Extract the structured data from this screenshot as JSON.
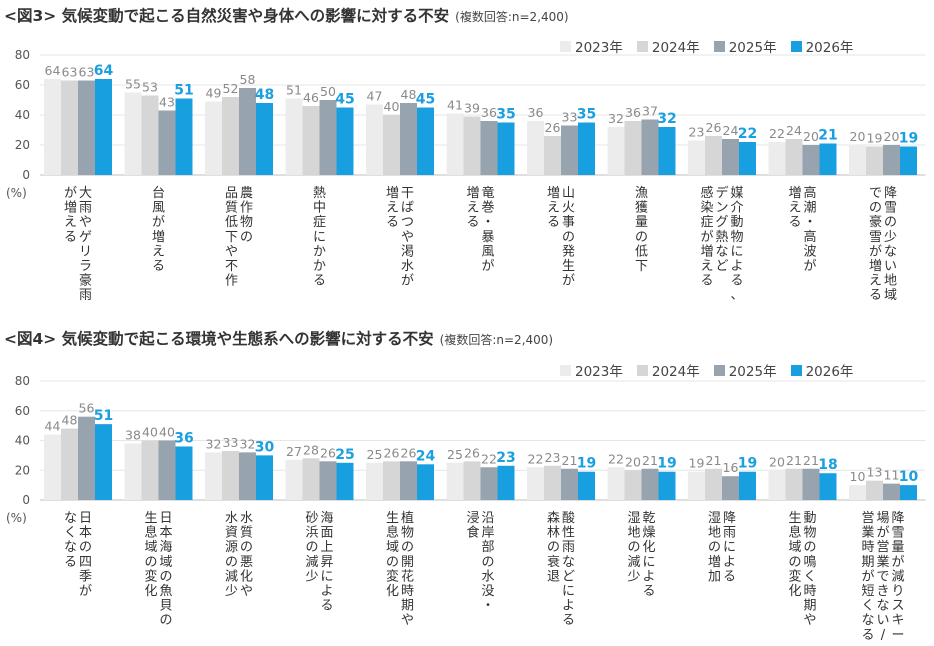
{
  "palette": {
    "2023": "#ececec",
    "2024": "#d6d6d6",
    "2025": "#97a3ae",
    "2026": "#189fe0"
  },
  "chart_data": [
    {
      "type": "bar",
      "title": "<図3> 気候変動で起こる自然災害や身体への影響に対する不安",
      "note": "(複数回答:n=2,400)",
      "ylabel": "(%)",
      "ylim": [
        0,
        80
      ],
      "yticks": [
        0,
        20,
        40,
        60,
        80
      ],
      "legend": [
        "2023年",
        "2024年",
        "2025年",
        "2026年"
      ],
      "categories": [
        [
          "大雨やゲリラ豪雨",
          "が増える"
        ],
        [
          "台風が増える"
        ],
        [
          "農作物の",
          "品質低下や不作"
        ],
        [
          "熱中症にかかる"
        ],
        [
          "干ばつや渇水が",
          "増える"
        ],
        [
          "竜巻・暴風が",
          "増える"
        ],
        [
          "山火事の発生が",
          "増える"
        ],
        [
          "漁獲量の低下"
        ],
        [
          "媒介動物による、",
          "デング熱など",
          "感染症が増える"
        ],
        [
          "高潮・高波が",
          "増える"
        ],
        [
          "降雪の少ない地域",
          "での豪雪が増える"
        ]
      ],
      "series": [
        {
          "name": "2023年",
          "values": [
            64,
            55,
            49,
            51,
            47,
            41,
            36,
            32,
            23,
            22,
            20
          ]
        },
        {
          "name": "2024年",
          "values": [
            63,
            53,
            52,
            46,
            40,
            39,
            26,
            36,
            26,
            24,
            19
          ]
        },
        {
          "name": "2025年",
          "values": [
            63,
            43,
            58,
            50,
            48,
            36,
            33,
            37,
            24,
            20,
            20
          ]
        },
        {
          "name": "2026年",
          "values": [
            64,
            51,
            48,
            45,
            45,
            35,
            35,
            32,
            22,
            21,
            19
          ]
        }
      ]
    },
    {
      "type": "bar",
      "title": "<図4> 気候変動で起こる環境や生態系への影響に対する不安",
      "note": "(複数回答:n=2,400)",
      "ylabel": "(%)",
      "ylim": [
        0,
        80
      ],
      "yticks": [
        0,
        20,
        40,
        60,
        80
      ],
      "legend": [
        "2023年",
        "2024年",
        "2025年",
        "2026年"
      ],
      "categories": [
        [
          "日本の四季が",
          "なくなる"
        ],
        [
          "日本海域の魚貝の",
          "生息域の変化"
        ],
        [
          "水質の悪化や",
          "水資源の減少"
        ],
        [
          "海面上昇による",
          "砂浜の減少"
        ],
        [
          "植物の開花時期や",
          "生息域の変化"
        ],
        [
          "沿岸部の水没・",
          "浸食"
        ],
        [
          "酸性雨などによる",
          "森林の衰退"
        ],
        [
          "乾燥化による",
          "湿地の減少"
        ],
        [
          "降雨による",
          "湿地の増加"
        ],
        [
          "動物の鳴く時期や",
          "生息域の変化"
        ],
        [
          "降雪量が減りスキー",
          "場が営業できない/",
          "営業時期が短くなる"
        ]
      ],
      "series": [
        {
          "name": "2023年",
          "values": [
            44,
            38,
            32,
            27,
            25,
            25,
            22,
            22,
            19,
            20,
            10
          ]
        },
        {
          "name": "2024年",
          "values": [
            48,
            40,
            33,
            28,
            26,
            26,
            23,
            20,
            21,
            21,
            13
          ]
        },
        {
          "name": "2025年",
          "values": [
            56,
            40,
            32,
            26,
            26,
            22,
            21,
            21,
            16,
            21,
            11
          ]
        },
        {
          "name": "2026年",
          "values": [
            51,
            36,
            30,
            25,
            24,
            23,
            19,
            19,
            19,
            18,
            10
          ]
        }
      ]
    }
  ]
}
